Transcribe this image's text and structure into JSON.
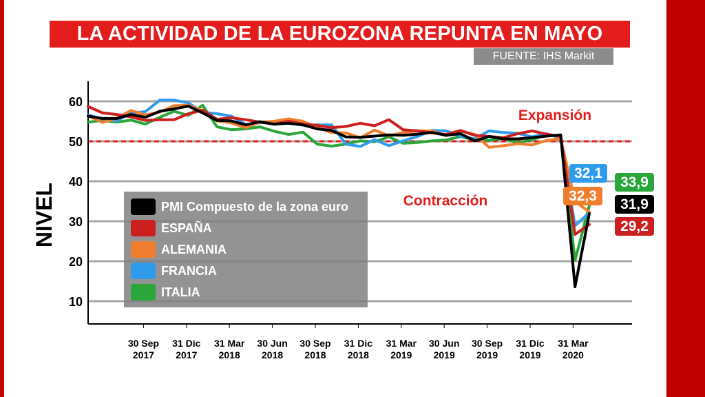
{
  "title": "LA ACTIVIDAD DE LA EUROZONA REPUNTA EN MAYO",
  "source": "FUENTE: IHS Markit",
  "colors": {
    "brand_red": "#e31c1c",
    "dark_red": "#c00000",
    "source_gray": "#8c8c8c",
    "grid": "#a6a6a6",
    "threshold": "#e31c1c"
  },
  "chart_data": {
    "type": "line",
    "ylabel": "NIVEL",
    "ylim": [
      5,
      65
    ],
    "yticks": [
      "10",
      "20",
      "30",
      "40",
      "50",
      "60"
    ],
    "threshold": 50,
    "annotations": {
      "above": "Expansión",
      "below": "Contracción"
    },
    "xtick_labels": [
      [
        "30 Sep",
        "2017"
      ],
      [
        "31 Dic",
        "2017"
      ],
      [
        "31 Mar",
        "2018"
      ],
      [
        "30 Jun",
        "2018"
      ],
      [
        "30 Sep",
        "2018"
      ],
      [
        "31 Dic",
        "2018"
      ],
      [
        "31 Mar",
        "2019"
      ],
      [
        "30 Jun",
        "2019"
      ],
      [
        "30 Sep",
        "2019"
      ],
      [
        "31 Dic",
        "2019"
      ],
      [
        "31 Mar",
        "2020"
      ]
    ],
    "x_start": "Jun 2017",
    "series": [
      {
        "name": "PMI Compuesto de la zona euro",
        "color": "#000000",
        "values": [
          56.3,
          55.7,
          55.7,
          56.7,
          56.0,
          57.5,
          58.1,
          58.8,
          57.1,
          55.2,
          55.1,
          54.1,
          54.9,
          54.3,
          54.5,
          54.1,
          53.1,
          52.7,
          51.1,
          51.0,
          51.3,
          51.6,
          51.5,
          51.8,
          52.2,
          51.5,
          51.9,
          50.1,
          51.2,
          50.6,
          50.6,
          50.9,
          51.3,
          51.6,
          13.6,
          31.9
        ],
        "end_label": "31,9"
      },
      {
        "name": "ESPAÑA",
        "color": "#cc1f1f",
        "values": [
          58.7,
          57.1,
          56.7,
          56.1,
          55.2,
          55.4,
          55.4,
          56.9,
          57.8,
          55.5,
          55.9,
          55.4,
          54.8,
          54.3,
          55.0,
          54.3,
          54.0,
          53.4,
          53.7,
          54.5,
          53.9,
          55.4,
          52.9,
          52.6,
          52.1,
          51.7,
          52.7,
          51.5,
          51.2,
          50.9,
          51.9,
          52.6,
          51.8,
          51.2,
          26.7,
          29.2
        ],
        "end_label": "29,2"
      },
      {
        "name": "ALEMANIA",
        "color": "#ef7f2e",
        "values": [
          56.4,
          54.7,
          55.8,
          57.7,
          56.6,
          57.3,
          58.9,
          59.0,
          57.6,
          55.1,
          54.6,
          53.4,
          54.8,
          55.0,
          55.6,
          55.0,
          53.4,
          52.2,
          52.1,
          50.9,
          52.8,
          51.4,
          52.2,
          52.6,
          52.6,
          51.4,
          52.6,
          51.7,
          48.5,
          48.9,
          49.4,
          49.1,
          50.2,
          50.7,
          35.0,
          32.3
        ],
        "end_label": "32,3"
      },
      {
        "name": "FRANCIA",
        "color": "#2f9bed",
        "values": [
          56.6,
          55.6,
          55.1,
          57.1,
          57.4,
          60.3,
          60.3,
          59.6,
          57.3,
          56.9,
          56.3,
          54.2,
          54.6,
          54.9,
          54.7,
          54.0,
          54.1,
          54.1,
          49.3,
          48.7,
          50.4,
          48.9,
          50.1,
          51.2,
          52.7,
          52.6,
          51.3,
          50.6,
          52.6,
          52.2,
          52.0,
          51.1,
          51.9,
          50.8,
          28.9,
          32.1
        ],
        "end_label": "32,1"
      },
      {
        "name": "ITALIA",
        "color": "#2aa63a",
        "values": [
          54.8,
          55.2,
          54.8,
          55.3,
          54.3,
          56.0,
          57.5,
          56.5,
          59.0,
          53.6,
          52.9,
          53.1,
          53.6,
          52.5,
          51.7,
          52.3,
          49.3,
          48.8,
          49.3,
          50.1,
          49.9,
          51.1,
          49.5,
          49.7,
          50.1,
          50.3,
          51.2,
          50.3,
          50.2,
          50.8,
          49.6,
          50.4,
          51.6,
          51.4,
          20.2,
          33.9
        ],
        "end_label": "33,9"
      }
    ]
  }
}
